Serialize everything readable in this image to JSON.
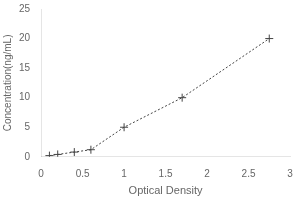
{
  "chart_data": {
    "type": "line",
    "x": [
      0.1,
      0.2,
      0.4,
      0.6,
      1.0,
      1.7,
      2.75
    ],
    "values": [
      0.2,
      0.4,
      0.8,
      1.2,
      5.0,
      10.0,
      20.0
    ],
    "xlabel": "Optical Density",
    "ylabel": "Concentration(ng/mL)",
    "color": "#444444",
    "marker": "plus",
    "line_style": "dotted",
    "xlim": [
      0,
      3.0
    ],
    "xticks": [
      0,
      0.5,
      1,
      1.5,
      2,
      2.5,
      3
    ],
    "ylim": [
      0,
      25
    ],
    "yticks": [
      0,
      5,
      10,
      15,
      20,
      25
    ],
    "grid": false
  }
}
